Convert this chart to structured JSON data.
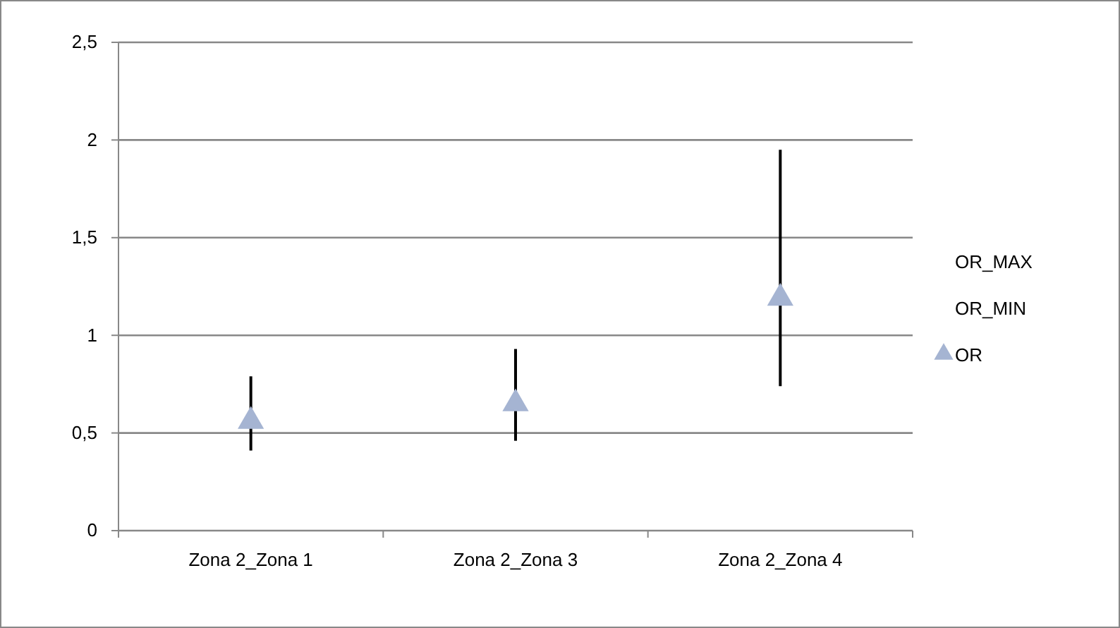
{
  "chart_data": {
    "type": "scatter",
    "categories": [
      "Zona 2_Zona 1",
      "Zona 2_Zona 3",
      "Zona 2_Zona 4"
    ],
    "series": [
      {
        "name": "OR",
        "color": "#a5b4d2",
        "marker": "triangle",
        "values": [
          0.56,
          0.65,
          1.19
        ],
        "errors": [
          [
            0.41,
            0.79
          ],
          [
            0.46,
            0.93
          ],
          [
            0.74,
            1.95
          ]
        ]
      }
    ],
    "annotations": [
      "OR_MAX",
      "OR_MIN"
    ],
    "ylim": [
      0,
      2.5
    ],
    "yticks": [
      {
        "value": 0,
        "label": "0"
      },
      {
        "value": 0.5,
        "label": "0,5"
      },
      {
        "value": 1,
        "label": "1"
      },
      {
        "value": 1.5,
        "label": "1,5"
      },
      {
        "value": 2,
        "label": "2"
      },
      {
        "value": 2.5,
        "label": "2,5"
      }
    ],
    "grid": "y",
    "legend": "right"
  }
}
